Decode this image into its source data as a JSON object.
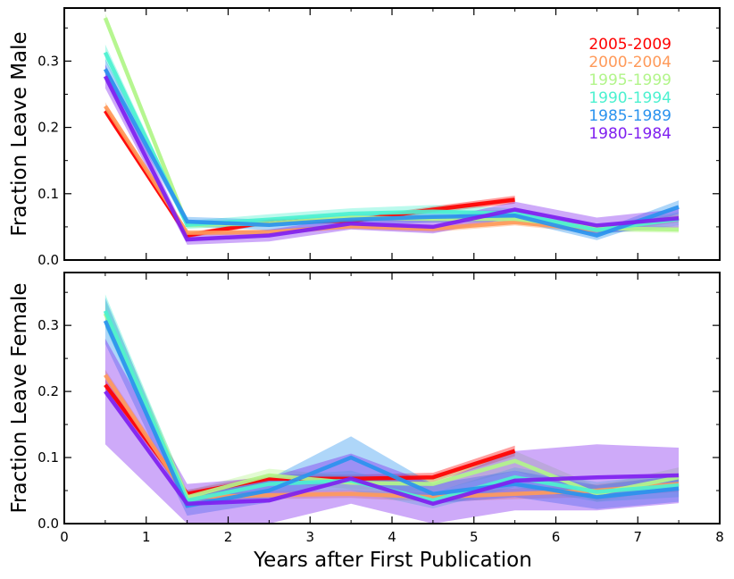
{
  "chart_data": {
    "type": "line",
    "x": [
      0.5,
      1.5,
      2.5,
      3.5,
      4.5,
      5.5,
      6.5,
      7.5
    ],
    "xlabel": "Years after First Publication",
    "xlim": [
      0,
      8
    ],
    "xticks": [
      0,
      1,
      2,
      3,
      4,
      5,
      6,
      7,
      8
    ],
    "legend_placement": "top-right",
    "grid": false,
    "series_styles": [
      {
        "name": "2005-2009",
        "color": "#ff0000"
      },
      {
        "name": "2000-2004",
        "color": "#ff9a5a"
      },
      {
        "name": "1995-1999",
        "color": "#b2f58a"
      },
      {
        "name": "1990-1994",
        "color": "#4cf1d0"
      },
      {
        "name": "1985-1989",
        "color": "#2b93ee"
      },
      {
        "name": "1980-1984",
        "color": "#7f1ff0"
      }
    ],
    "panels": [
      {
        "ylabel": "Fraction Leave Male",
        "ylim": [
          0,
          0.38
        ],
        "yticks": [
          0.0,
          0.1,
          0.2,
          0.3
        ],
        "ytick_labels": [
          "0.0",
          "0.1",
          "0.2",
          "0.3"
        ],
        "series": [
          {
            "name": "2005-2009",
            "values": [
              0.225,
              0.037,
              0.058,
              0.059,
              0.076,
              0.091,
              null,
              null
            ],
            "band": [
              0.006,
              0.004,
              0.004,
              0.004,
              0.005,
              0.006,
              null,
              null
            ]
          },
          {
            "name": "2000-2004",
            "values": [
              0.232,
              0.041,
              0.042,
              0.051,
              0.047,
              0.057,
              0.045,
              0.063
            ],
            "band": [
              0.006,
              0.004,
              0.004,
              0.004,
              0.005,
              0.005,
              0.005,
              0.006
            ]
          },
          {
            "name": "1995-1999",
            "values": [
              0.365,
              0.053,
              0.055,
              0.064,
              0.062,
              0.062,
              0.048,
              0.046
            ],
            "band": [
              0.007,
              0.005,
              0.005,
              0.005,
              0.005,
              0.006,
              0.005,
              0.005
            ]
          },
          {
            "name": "1990-1994",
            "values": [
              0.313,
              0.053,
              0.061,
              0.07,
              0.073,
              0.07,
              0.045,
              0.062
            ],
            "band": [
              0.012,
              0.006,
              0.008,
              0.008,
              0.01,
              0.008,
              0.007,
              0.01
            ]
          },
          {
            "name": "1985-1989",
            "values": [
              0.288,
              0.058,
              0.053,
              0.061,
              0.065,
              0.067,
              0.037,
              0.08
            ],
            "band": [
              0.015,
              0.007,
              0.008,
              0.008,
              0.009,
              0.008,
              0.007,
              0.01
            ]
          },
          {
            "name": "1980-1984",
            "values": [
              0.277,
              0.031,
              0.037,
              0.055,
              0.05,
              0.076,
              0.052,
              0.063
            ],
            "band": [
              0.018,
              0.008,
              0.009,
              0.009,
              0.01,
              0.012,
              0.012,
              0.014
            ]
          }
        ]
      },
      {
        "ylabel": "Fraction Leave Female",
        "ylim": [
          0,
          0.38
        ],
        "yticks": [
          0.0,
          0.1,
          0.2,
          0.3
        ],
        "ytick_labels": [
          "0.0",
          "0.1",
          "0.2",
          "0.3"
        ],
        "series": [
          {
            "name": "2005-2009",
            "values": [
              0.21,
              0.045,
              0.068,
              0.068,
              0.07,
              0.11,
              null,
              null
            ],
            "band": [
              0.008,
              0.006,
              0.006,
              0.006,
              0.007,
              0.008,
              null,
              null
            ]
          },
          {
            "name": "2000-2004",
            "values": [
              0.225,
              0.04,
              0.043,
              0.045,
              0.04,
              0.045,
              0.05,
              0.06
            ],
            "band": [
              0.008,
              0.006,
              0.006,
              0.006,
              0.007,
              0.008,
              0.01,
              0.012
            ]
          },
          {
            "name": "1995-1999",
            "values": [
              0.318,
              0.04,
              0.073,
              0.062,
              0.06,
              0.095,
              0.045,
              0.07
            ],
            "band": [
              0.02,
              0.01,
              0.01,
              0.01,
              0.012,
              0.015,
              0.012,
              0.015
            ]
          },
          {
            "name": "1990-1994",
            "values": [
              0.322,
              0.035,
              0.06,
              0.065,
              0.035,
              0.07,
              0.048,
              0.058
            ],
            "band": [
              0.025,
              0.012,
              0.012,
              0.015,
              0.012,
              0.015,
              0.015,
              0.018
            ]
          },
          {
            "name": "1985-1989",
            "values": [
              0.307,
              0.027,
              0.05,
              0.1,
              0.045,
              0.06,
              0.04,
              0.053
            ],
            "band": [
              0.035,
              0.015,
              0.018,
              0.032,
              0.015,
              0.02,
              0.018,
              0.02
            ]
          },
          {
            "name": "1980-1984",
            "values": [
              0.2,
              0.03,
              0.035,
              0.068,
              0.03,
              0.065,
              0.07,
              0.073
            ],
            "band": [
              0.08,
              0.03,
              0.035,
              0.038,
              0.03,
              0.045,
              0.05,
              0.042
            ]
          }
        ]
      }
    ]
  }
}
